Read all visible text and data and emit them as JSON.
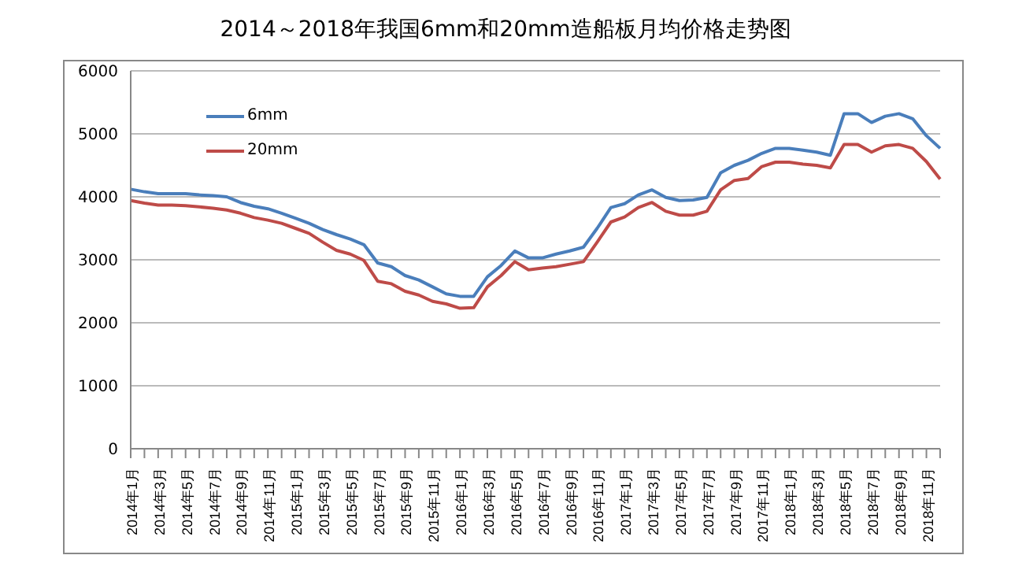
{
  "chart_data": {
    "type": "line",
    "title": "2014～2018年我国6mm和20mm造船板月均价格走势图",
    "categories": [
      "2014年1月",
      null,
      "2014年3月",
      null,
      "2014年5月",
      null,
      "2014年7月",
      null,
      "2014年9月",
      null,
      "2014年11月",
      null,
      "2015年1月",
      null,
      "2015年3月",
      null,
      "2015年5月",
      null,
      "2015年7月",
      null,
      "2015年9月",
      null,
      "2015年11月",
      null,
      "2016年1月",
      null,
      "2016年3月",
      null,
      "2016年5月",
      null,
      "2016年7月",
      null,
      "2016年9月",
      null,
      "2016年11月",
      null,
      "2017年1月",
      null,
      "2017年3月",
      null,
      "2017年5月",
      null,
      "2017年7月",
      null,
      "2017年9月",
      null,
      "2017年11月",
      null,
      "2018年1月",
      null,
      "2018年3月",
      null,
      "2018年5月",
      null,
      "2018年7月",
      null,
      "2018年9月",
      null,
      "2018年11月",
      null
    ],
    "series": [
      {
        "name": "6mm",
        "color": "#4a7ebb",
        "values": [
          4120,
          4080,
          4050,
          4050,
          4050,
          4030,
          4020,
          4000,
          3910,
          3850,
          3810,
          3740,
          3660,
          3580,
          3480,
          3400,
          3330,
          3240,
          2950,
          2890,
          2750,
          2680,
          2570,
          2460,
          2420,
          2420,
          2730,
          2910,
          3140,
          3030,
          3030,
          3090,
          3140,
          3200,
          3500,
          3830,
          3890,
          4030,
          4110,
          3990,
          3940,
          3950,
          3990,
          4380,
          4500,
          4580,
          4690,
          4770,
          4770,
          4740,
          4710,
          4660,
          5320,
          5320,
          5180,
          5280,
          5320,
          5240,
          4970,
          4770
        ]
      },
      {
        "name": "20mm",
        "color": "#be4b48",
        "values": [
          3940,
          3900,
          3870,
          3870,
          3860,
          3840,
          3820,
          3790,
          3740,
          3670,
          3630,
          3580,
          3500,
          3420,
          3280,
          3150,
          3090,
          2990,
          2660,
          2620,
          2500,
          2440,
          2340,
          2300,
          2230,
          2240,
          2570,
          2750,
          2970,
          2840,
          2870,
          2890,
          2930,
          2970,
          3280,
          3600,
          3680,
          3830,
          3910,
          3770,
          3710,
          3710,
          3770,
          4110,
          4260,
          4290,
          4480,
          4550,
          4550,
          4520,
          4500,
          4460,
          4830,
          4830,
          4710,
          4810,
          4830,
          4770,
          4560,
          4280
        ]
      }
    ],
    "ylim": [
      0,
      6000
    ],
    "yticks": [
      0,
      1000,
      2000,
      3000,
      4000,
      5000,
      6000
    ],
    "grid": "y",
    "legend": "top left",
    "marker": "none",
    "line_style": "solid"
  }
}
